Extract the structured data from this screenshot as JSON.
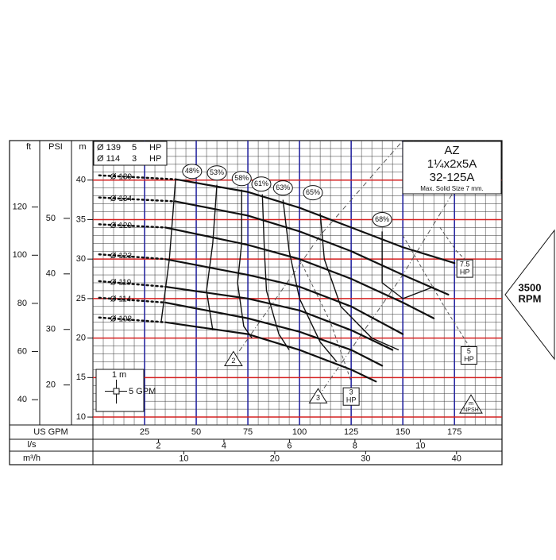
{
  "chart_data": {
    "type": "line",
    "x_label": "US GPM",
    "y_label": "m",
    "xlim": [
      0,
      198
    ],
    "xticks": [
      25,
      50,
      75,
      100,
      125,
      150,
      175
    ],
    "ylim": [
      9,
      45
    ],
    "yticks": [
      10,
      15,
      20,
      25,
      30,
      35,
      40
    ],
    "grid": {
      "minor_x_step": 5,
      "minor_y_step": 1,
      "major_x_color": "#1c1c9c",
      "major_y_color": "#d42020"
    },
    "secondary_axes": {
      "ft": {
        "label": "ft",
        "lim": [
          29.5,
          147.6
        ],
        "ticks": [
          40,
          60,
          80,
          100,
          120
        ]
      },
      "psi": {
        "label": "PSI",
        "lim": [
          12.8,
          64
        ],
        "ticks": [
          20,
          30,
          40,
          50
        ]
      },
      "ls": {
        "label": "l/s",
        "lim": [
          0,
          12.49
        ],
        "ticks": [
          2,
          4,
          6,
          8,
          10
        ]
      },
      "m3h": {
        "label": "m³/h",
        "lim": [
          0,
          45
        ],
        "ticks": [
          10,
          20,
          30,
          40
        ]
      }
    },
    "series": [
      {
        "name": "Ø 139",
        "color": "#111111",
        "x": [
          3,
          40,
          75,
          100,
          125,
          150,
          175
        ],
        "values": [
          40.6,
          40.1,
          38.5,
          36.5,
          34,
          31.5,
          29.5
        ]
      },
      {
        "name": "Ø 134",
        "color": "#111111",
        "x": [
          3,
          40,
          75,
          100,
          125,
          150,
          172
        ],
        "values": [
          37.8,
          37.3,
          35.5,
          33.5,
          31,
          28,
          25.5
        ]
      },
      {
        "name": "Ø 129",
        "color": "#111111",
        "x": [
          3,
          35,
          75,
          100,
          125,
          150,
          165
        ],
        "values": [
          34.4,
          34,
          31.8,
          30,
          27.5,
          24.5,
          22.5
        ]
      },
      {
        "name": "Ø 123",
        "color": "#111111",
        "x": [
          3,
          35,
          75,
          100,
          125,
          150
        ],
        "values": [
          30.6,
          30,
          28,
          26.5,
          24,
          20.5
        ]
      },
      {
        "name": "Ø 119",
        "color": "#111111",
        "x": [
          3,
          35,
          75,
          100,
          125,
          145
        ],
        "values": [
          27.2,
          26.5,
          25,
          23.5,
          21,
          18.5
        ]
      },
      {
        "name": "Ø 114",
        "color": "#111111",
        "x": [
          3,
          35,
          75,
          100,
          125,
          140
        ],
        "values": [
          25.1,
          24.5,
          22.5,
          20.8,
          18.5,
          16.5
        ]
      },
      {
        "name": "Ø 108",
        "color": "#111111",
        "x": [
          3,
          35,
          75,
          100,
          125,
          137
        ],
        "values": [
          22.6,
          22,
          20.5,
          18.5,
          16,
          14.5
        ]
      }
    ],
    "efficiency_curves": [
      {
        "label": "48%",
        "label_x": 48,
        "label_y": 41.1,
        "x": [
          40,
          37,
          33
        ],
        "values": [
          40.1,
          30,
          22
        ]
      },
      {
        "label": "53%",
        "label_x": 60,
        "label_y": 40.9,
        "x": [
          60,
          58,
          55,
          58
        ],
        "values": [
          39.4,
          32,
          26,
          21
        ]
      },
      {
        "label": "58%",
        "label_x": 72,
        "label_y": 40.2,
        "x": [
          72,
          72,
          70,
          73,
          77
        ],
        "values": [
          38.8,
          32,
          27,
          21.5,
          20
        ]
      },
      {
        "label": "61%",
        "label_x": 81.5,
        "label_y": 39.5,
        "x": [
          82,
          83,
          84,
          90,
          95
        ],
        "values": [
          38.2,
          31,
          26,
          20.5,
          18.5
        ]
      },
      {
        "label": "63%",
        "label_x": 92,
        "label_y": 39,
        "x": [
          92,
          95,
          100,
          110,
          118
        ],
        "values": [
          37.5,
          31,
          25,
          19.5,
          17
        ]
      },
      {
        "label": "65%",
        "label_x": 106.5,
        "label_y": 38.4,
        "x": [
          110,
          112,
          120,
          135,
          148
        ],
        "values": [
          35.8,
          30,
          24,
          20,
          18.5
        ]
      },
      {
        "label": "68%",
        "label_x": 140,
        "label_y": 35,
        "x": [
          140,
          140,
          150,
          165
        ],
        "values": [
          33.5,
          27,
          25,
          26.5
        ]
      }
    ],
    "power_curves": [
      {
        "label": "3",
        "unit": "HP",
        "label_x": 125,
        "label_y": 12.6,
        "x": [
          100,
          115,
          125
        ],
        "values": [
          30,
          22,
          14.5
        ]
      },
      {
        "label": "5",
        "unit": "HP",
        "label_x": 182,
        "label_y": 17.8,
        "x": [
          150,
          170,
          182
        ],
        "values": [
          33,
          24,
          19
        ]
      },
      {
        "label": "7.5",
        "unit": "HP",
        "label_x": 180,
        "label_y": 28.8,
        "x": [
          168,
          176,
          180
        ],
        "values": [
          34,
          31,
          30
        ]
      }
    ],
    "npsh_curves": [
      {
        "label": "2",
        "label_x": 68,
        "label_y": 17.3,
        "x": [
          68,
          110,
          150
        ],
        "values": [
          17.3,
          33,
          45
        ]
      },
      {
        "label": "3",
        "label_x": 109,
        "label_y": 12.6,
        "x": [
          109,
          150,
          185
        ],
        "values": [
          12.6,
          28,
          43
        ]
      }
    ],
    "npsh_marker": {
      "top": "m",
      "bottom": "NPSH",
      "x": 183,
      "y": 11.5
    },
    "legend_rows": [
      {
        "diameter": "Ø 139",
        "power": "5",
        "unit": "HP"
      },
      {
        "diameter": "Ø 114",
        "power": "3",
        "unit": "HP"
      }
    ],
    "model_box": {
      "brand": "AZ",
      "size": "1¼x2x5A",
      "model": "32-125A",
      "note": "Max. Solid Size 7 mm."
    },
    "speed": {
      "value": "3500",
      "unit": "RPM"
    },
    "scale_key": {
      "head": "1 m",
      "flow": "5 GPM"
    }
  }
}
